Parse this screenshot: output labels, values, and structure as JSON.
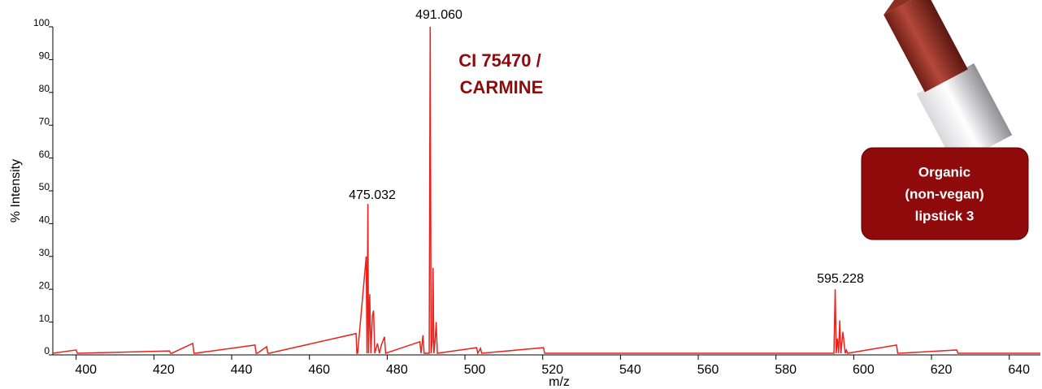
{
  "chart_data": {
    "type": "line",
    "x_label": "m/z",
    "y_label": "% Intensity",
    "series": [
      {
        "name": "spectrum",
        "color": "#e8231e",
        "x": [
          394,
          400,
          400.3,
          400.6,
          424,
          424.3,
          424.6,
          430,
          430.3,
          430.6,
          446,
          446.3,
          446.6,
          449,
          449.3,
          449.6,
          472,
          472.2,
          472.4,
          474.6,
          474.8,
          475.032,
          475.2,
          475.5,
          475.8,
          476.2,
          476.5,
          476.8,
          477.5,
          478,
          478.5,
          479.3,
          479.6,
          488.4,
          488.7,
          489.2,
          489.5,
          490.8,
          491.06,
          491.3,
          491.6,
          491.8,
          492.0,
          492.3,
          492.6,
          492.9,
          503,
          503.3,
          504,
          504.3,
          520.2,
          520.5,
          520.8,
          594.9,
          595.228,
          595.5,
          595.8,
          596.1,
          596.4,
          596.7,
          597.2,
          597.8,
          598.1,
          598.4,
          611,
          611.3,
          611.6,
          626.5,
          626.8,
          627.1,
          648
        ],
        "values": [
          0.5,
          1.5,
          0.5,
          0.5,
          1.2,
          0.5,
          0.5,
          3.5,
          0.5,
          0.5,
          3,
          0.5,
          0.5,
          2.5,
          0.5,
          0.5,
          6.5,
          0.5,
          0.5,
          30,
          0.5,
          46,
          0.5,
          18.5,
          0.5,
          12,
          13.5,
          0.5,
          3.5,
          0.5,
          3,
          5.5,
          0.5,
          4,
          0.5,
          6,
          0.5,
          0.5,
          100,
          0.5,
          4,
          26.5,
          0.5,
          4,
          10,
          0.5,
          2.2,
          0.5,
          2,
          0.5,
          2.2,
          0.5,
          0.5,
          0.5,
          20,
          0.5,
          5,
          0.5,
          10.5,
          0.5,
          7,
          0.5,
          1.5,
          0.5,
          3,
          0.5,
          0.5,
          1.5,
          0.5,
          0.5,
          0.5
        ]
      }
    ],
    "xlim": [
      394,
      648
    ],
    "ylim": [
      0,
      100
    ],
    "xticks": [
      400,
      420,
      440,
      460,
      480,
      500,
      520,
      540,
      560,
      580,
      600,
      620,
      640
    ],
    "yticks": [
      0,
      10,
      20,
      30,
      40,
      50,
      60,
      70,
      80,
      90,
      100
    ],
    "annotations": [
      "491.060",
      "475.032",
      "595.228",
      "CI 75470 /",
      "CARMINE"
    ],
    "badge": [
      "Organic",
      "(non-vegan)",
      "lipstick 3"
    ]
  }
}
